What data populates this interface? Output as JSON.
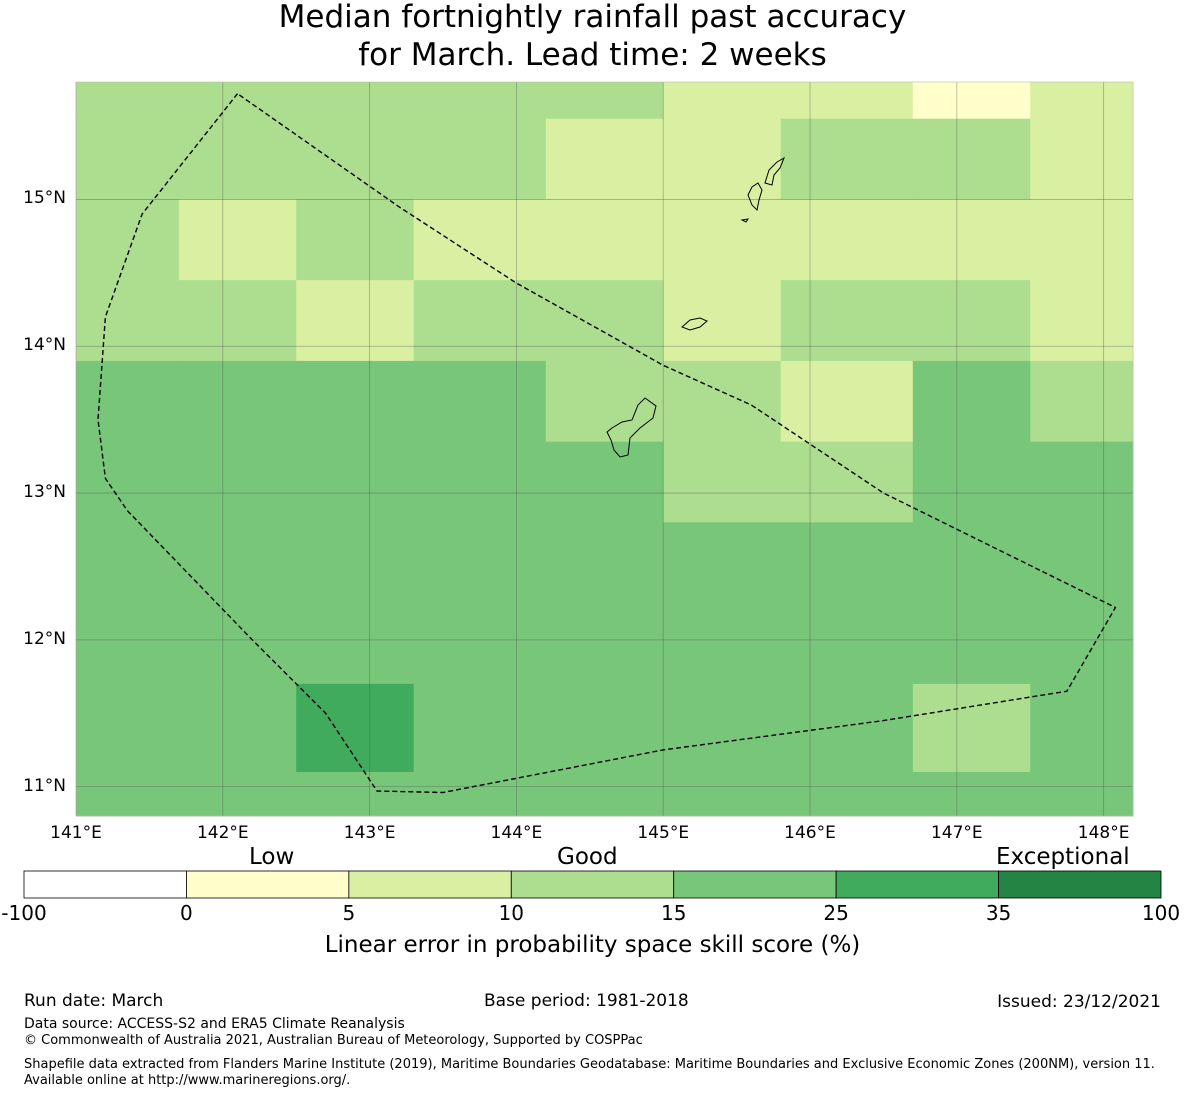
{
  "title": {
    "line1": "Median fortnightly rainfall past accuracy",
    "line2": "for March. Lead time: 2 weeks"
  },
  "map": {
    "lon_range": [
      141.0,
      148.2
    ],
    "lat_range": [
      10.8,
      15.8
    ],
    "x_ticks": [
      "141°E",
      "142°E",
      "143°E",
      "144°E",
      "145°E",
      "146°E",
      "147°E",
      "148°E"
    ],
    "y_ticks": [
      "15°N",
      "14°N",
      "13°N",
      "12°N",
      "11°N"
    ],
    "grid_columns_lon": [
      141.0,
      141.7,
      142.5,
      143.3,
      144.2,
      145.0,
      145.8,
      146.7,
      147.5,
      148.2
    ],
    "grid_rows_lat": [
      15.8,
      15.55,
      15.0,
      14.45,
      13.9,
      13.35,
      12.8,
      12.25,
      11.7,
      11.1,
      10.8
    ],
    "cell_categories": [
      [
        2,
        2,
        2,
        2,
        2,
        1,
        1,
        0,
        1
      ],
      [
        2,
        2,
        2,
        2,
        1,
        1,
        2,
        2,
        1
      ],
      [
        2,
        1,
        2,
        1,
        1,
        1,
        1,
        1,
        1
      ],
      [
        2,
        2,
        1,
        2,
        2,
        1,
        2,
        2,
        1
      ],
      [
        3,
        3,
        3,
        3,
        2,
        2,
        1,
        3,
        2
      ],
      [
        3,
        3,
        3,
        3,
        3,
        2,
        2,
        3,
        3
      ],
      [
        3,
        3,
        3,
        3,
        3,
        3,
        3,
        3,
        3
      ],
      [
        3,
        3,
        3,
        3,
        3,
        3,
        3,
        3,
        3
      ],
      [
        3,
        3,
        4,
        3,
        3,
        3,
        3,
        2,
        3
      ],
      [
        3,
        3,
        3,
        3,
        3,
        3,
        3,
        3,
        3
      ]
    ],
    "eez_boundary_lonlat": [
      [
        142.1,
        15.72
      ],
      [
        141.45,
        14.9
      ],
      [
        141.2,
        14.2
      ],
      [
        141.15,
        13.5
      ],
      [
        141.2,
        13.1
      ],
      [
        141.35,
        12.88
      ],
      [
        142.2,
        12.0
      ],
      [
        142.7,
        11.5
      ],
      [
        143.05,
        10.97
      ],
      [
        143.5,
        10.96
      ],
      [
        145.0,
        11.25
      ],
      [
        146.5,
        11.45
      ],
      [
        147.75,
        11.65
      ],
      [
        148.08,
        12.22
      ],
      [
        146.5,
        13.0
      ],
      [
        145.6,
        13.6
      ],
      [
        145.0,
        13.87
      ],
      [
        144.0,
        14.43
      ],
      [
        143.2,
        14.95
      ],
      [
        142.1,
        15.72
      ]
    ]
  },
  "legend": {
    "categories": [
      "Low",
      "Good",
      "Exceptional"
    ],
    "boundaries": [
      "-100",
      "0",
      "5",
      "10",
      "15",
      "25",
      "35",
      "100"
    ],
    "colors": [
      "#ffffff",
      "#ffffcc",
      "#d9f0a3",
      "#addd8e",
      "#78c679",
      "#41ab5d",
      "#238443"
    ],
    "label": "Linear error in probability space skill score (%)"
  },
  "footer": {
    "run_date": "Run date: March",
    "base_period": "Base period: 1981-2018",
    "issued": "Issued: 23/12/2021",
    "data_source": "Data source: ACCESS-S2 and ERA5 Climate Reanalysis",
    "copyright": "© Commonwealth of Australia 2021, Australian Bureau of Meteorology, Supported by COSPPac",
    "shapefile": "Shapefile data extracted from Flanders Marine Institute (2019), Maritime Boundaries Geodatabase: Maritime Boundaries and Exclusive Economic Zones (200NM), version 11. Available online at http://www.marineregions.org/."
  }
}
